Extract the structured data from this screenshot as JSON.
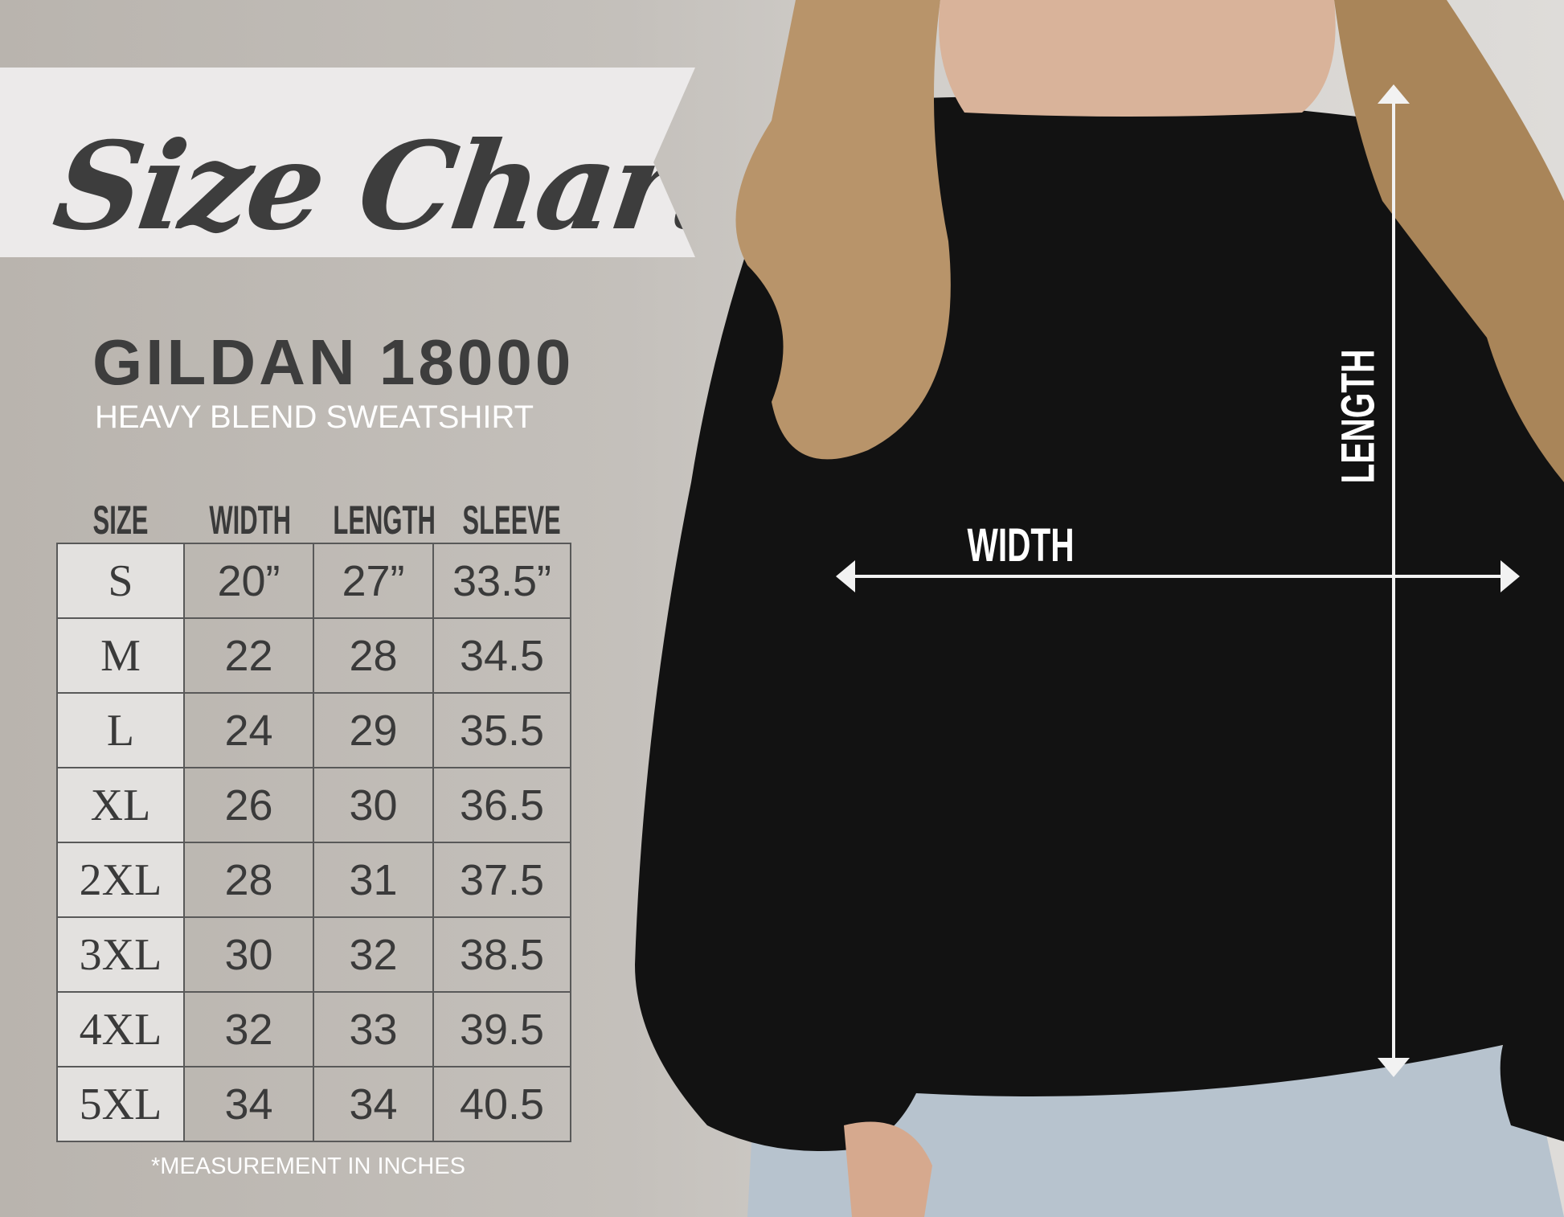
{
  "banner": {
    "title": "Size Chart"
  },
  "product": {
    "model": "GILDAN 18000",
    "subtitle": "HEAVY BLEND SWEATSHIRT"
  },
  "table": {
    "headers": [
      "SIZE",
      "WIDTH",
      "LENGTH",
      "SLEEVE"
    ],
    "rows": [
      [
        "S",
        "20”",
        "27”",
        "33.5”"
      ],
      [
        "M",
        "22",
        "28",
        "34.5"
      ],
      [
        "L",
        "24",
        "29",
        "35.5"
      ],
      [
        "XL",
        "26",
        "30",
        "36.5"
      ],
      [
        "2XL",
        "28",
        "31",
        "37.5"
      ],
      [
        "3XL",
        "30",
        "32",
        "38.5"
      ],
      [
        "4XL",
        "32",
        "33",
        "39.5"
      ],
      [
        "5XL",
        "34",
        "34",
        "40.5"
      ]
    ]
  },
  "footnote": "*MEASUREMENT IN INCHES",
  "diagram": {
    "width_label": "WIDTH",
    "length_label": "LENGTH"
  },
  "colors": {
    "text_dark": "#3d3d3d",
    "background": "#c4c0bb",
    "sweatshirt": "#111111",
    "arrows": "#ffffff"
  }
}
